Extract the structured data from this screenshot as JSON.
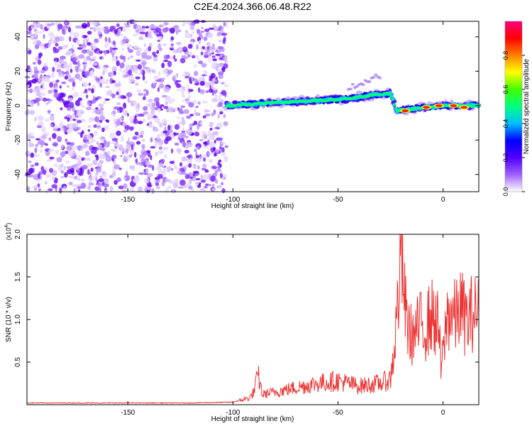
{
  "title": "C2E4.2024.366.06.48.R22",
  "chart_data": [
    {
      "type": "heatmap",
      "xlabel": "Height of straight line (km)",
      "ylabel": "Frequency (Hz)",
      "xlim": [
        -198,
        17
      ],
      "ylim": [
        -50,
        49
      ],
      "xticks": [
        -150,
        -100,
        -50,
        0
      ],
      "yticks": [
        -40,
        -20,
        0,
        20,
        40
      ],
      "grid": false,
      "noise_region": {
        "x": [
          -198,
          -103
        ],
        "y": [
          -50,
          49
        ]
      },
      "signal_band": [
        {
          "x": -103,
          "y": 0
        },
        {
          "x": -90,
          "y": 1
        },
        {
          "x": -75,
          "y": 2
        },
        {
          "x": -60,
          "y": 3
        },
        {
          "x": -45,
          "y": 4
        },
        {
          "x": -35,
          "y": 6
        },
        {
          "x": -25,
          "y": 7
        },
        {
          "x": -22,
          "y": -3
        },
        {
          "x": -10,
          "y": -1
        },
        {
          "x": 0,
          "y": 0
        },
        {
          "x": 17,
          "y": 0
        }
      ],
      "colorbar": {
        "label": "Normalized spectral amplitude",
        "ticks": [
          0.0,
          0.2,
          0.4,
          0.6,
          0.8
        ],
        "range": [
          0,
          1
        ],
        "colors": [
          "#ffffff",
          "#a060ff",
          "#5000ff",
          "#0000ff",
          "#00c0ff",
          "#00ff80",
          "#40ff00",
          "#ffff00",
          "#ff8000",
          "#ff0000",
          "#ff0080"
        ]
      }
    },
    {
      "type": "line",
      "xlabel": "Height of straight line (km)",
      "ylabel": "SNR (10 * v/v)",
      "y_multiplier": "(x10^4)",
      "xlim": [
        -198,
        17
      ],
      "ylim": [
        0,
        2.0
      ],
      "xticks": [
        -150,
        -100,
        -50,
        0
      ],
      "yticks": [
        0.5,
        1.0,
        1.5,
        2.0
      ],
      "grid": false,
      "color": "#ee3333",
      "series": [
        {
          "x": [
            -198,
            -150,
            -120,
            -100,
            -92,
            -90,
            -88,
            -86,
            -80,
            -70,
            -60,
            -50,
            -40,
            -30,
            -25,
            -23,
            -21,
            -20,
            -19,
            -18,
            -16,
            -14,
            -12,
            -10,
            -8,
            -6,
            -4,
            -2,
            -1,
            0,
            2,
            4,
            6,
            8,
            10,
            12,
            14,
            17
          ],
          "y": [
            0.02,
            0.02,
            0.02,
            0.03,
            0.08,
            0.15,
            0.35,
            0.12,
            0.15,
            0.2,
            0.25,
            0.28,
            0.22,
            0.25,
            0.3,
            0.7,
            1.4,
            2.0,
            1.5,
            1.1,
            0.85,
            0.8,
            0.9,
            0.95,
            0.9,
            1.05,
            1.0,
            0.9,
            0.4,
            0.6,
            1.05,
            1.1,
            1.0,
            1.15,
            1.05,
            0.95,
            1.1,
            1.05
          ]
        }
      ]
    }
  ]
}
